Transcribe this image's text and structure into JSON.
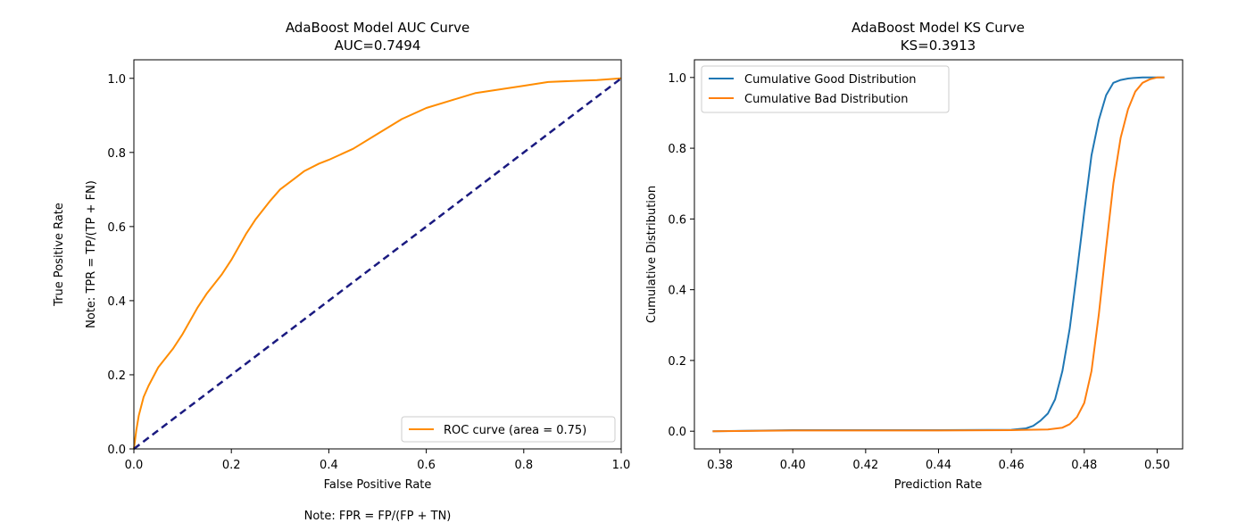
{
  "chart_data": [
    {
      "type": "line",
      "title": "AdaBoost Model AUC Curve",
      "subtitle": "AUC=0.7494",
      "xlabel": "False Positive Rate",
      "ylabel": "True Positive Rate",
      "ylabel2": "Note: TPR = TP/(TP + FN)",
      "note": "Note: FPR = FP/(FP + TN)",
      "xlim": [
        0.0,
        1.0
      ],
      "ylim": [
        0.0,
        1.05
      ],
      "xticks": [
        "0.0",
        "0.2",
        "0.4",
        "0.6",
        "0.8",
        "1.0"
      ],
      "yticks": [
        "0.0",
        "0.2",
        "0.4",
        "0.6",
        "0.8",
        "1.0"
      ],
      "legend_position": "lower-right",
      "series": [
        {
          "name": "ROC curve (area = 0.75)",
          "color": "#ff8c00",
          "x": [
            0,
            0.005,
            0.01,
            0.02,
            0.03,
            0.05,
            0.08,
            0.1,
            0.13,
            0.15,
            0.18,
            0.2,
            0.23,
            0.25,
            0.28,
            0.3,
            0.33,
            0.35,
            0.38,
            0.4,
            0.45,
            0.5,
            0.55,
            0.6,
            0.65,
            0.7,
            0.75,
            0.8,
            0.85,
            0.9,
            0.95,
            1.0
          ],
          "y": [
            0,
            0.05,
            0.09,
            0.14,
            0.17,
            0.22,
            0.27,
            0.31,
            0.38,
            0.42,
            0.47,
            0.51,
            0.58,
            0.62,
            0.67,
            0.7,
            0.73,
            0.75,
            0.77,
            0.78,
            0.81,
            0.85,
            0.89,
            0.92,
            0.94,
            0.96,
            0.97,
            0.98,
            0.99,
            0.993,
            0.995,
            1.0
          ]
        },
        {
          "name": "",
          "color": "#1a1a80",
          "dashed": true,
          "x": [
            0,
            1
          ],
          "y": [
            0,
            1
          ]
        }
      ]
    },
    {
      "type": "line",
      "title": "AdaBoost Model KS Curve",
      "subtitle": "KS=0.3913",
      "xlabel": "Prediction Rate",
      "ylabel": "Cumulative Distribution",
      "xlim": [
        0.373,
        0.507
      ],
      "ylim": [
        -0.05,
        1.05
      ],
      "xticks": [
        "0.38",
        "0.40",
        "0.42",
        "0.44",
        "0.46",
        "0.48",
        "0.50"
      ],
      "yticks": [
        "0.0",
        "0.2",
        "0.4",
        "0.6",
        "0.8",
        "1.0"
      ],
      "legend_position": "upper-left",
      "series": [
        {
          "name": "Cumulative Good Distribution",
          "color": "#1f77b4",
          "x": [
            0.378,
            0.4,
            0.44,
            0.46,
            0.464,
            0.466,
            0.468,
            0.47,
            0.472,
            0.474,
            0.476,
            0.478,
            0.48,
            0.482,
            0.484,
            0.486,
            0.488,
            0.49,
            0.492,
            0.494,
            0.496,
            0.498,
            0.5,
            0.502
          ],
          "y": [
            0.0,
            0.003,
            0.003,
            0.004,
            0.008,
            0.015,
            0.03,
            0.05,
            0.09,
            0.17,
            0.29,
            0.45,
            0.62,
            0.78,
            0.88,
            0.95,
            0.985,
            0.993,
            0.997,
            0.999,
            1.0,
            1.0,
            1.0,
            1.0
          ]
        },
        {
          "name": "Cumulative Bad Distribution",
          "color": "#ff7f0e",
          "x": [
            0.378,
            0.4,
            0.44,
            0.46,
            0.47,
            0.474,
            0.476,
            0.478,
            0.48,
            0.482,
            0.484,
            0.486,
            0.488,
            0.49,
            0.492,
            0.494,
            0.496,
            0.498,
            0.5,
            0.502
          ],
          "y": [
            0.0,
            0.002,
            0.002,
            0.003,
            0.005,
            0.01,
            0.02,
            0.04,
            0.08,
            0.17,
            0.33,
            0.52,
            0.7,
            0.83,
            0.91,
            0.96,
            0.985,
            0.995,
            1.0,
            1.0
          ]
        }
      ]
    }
  ]
}
